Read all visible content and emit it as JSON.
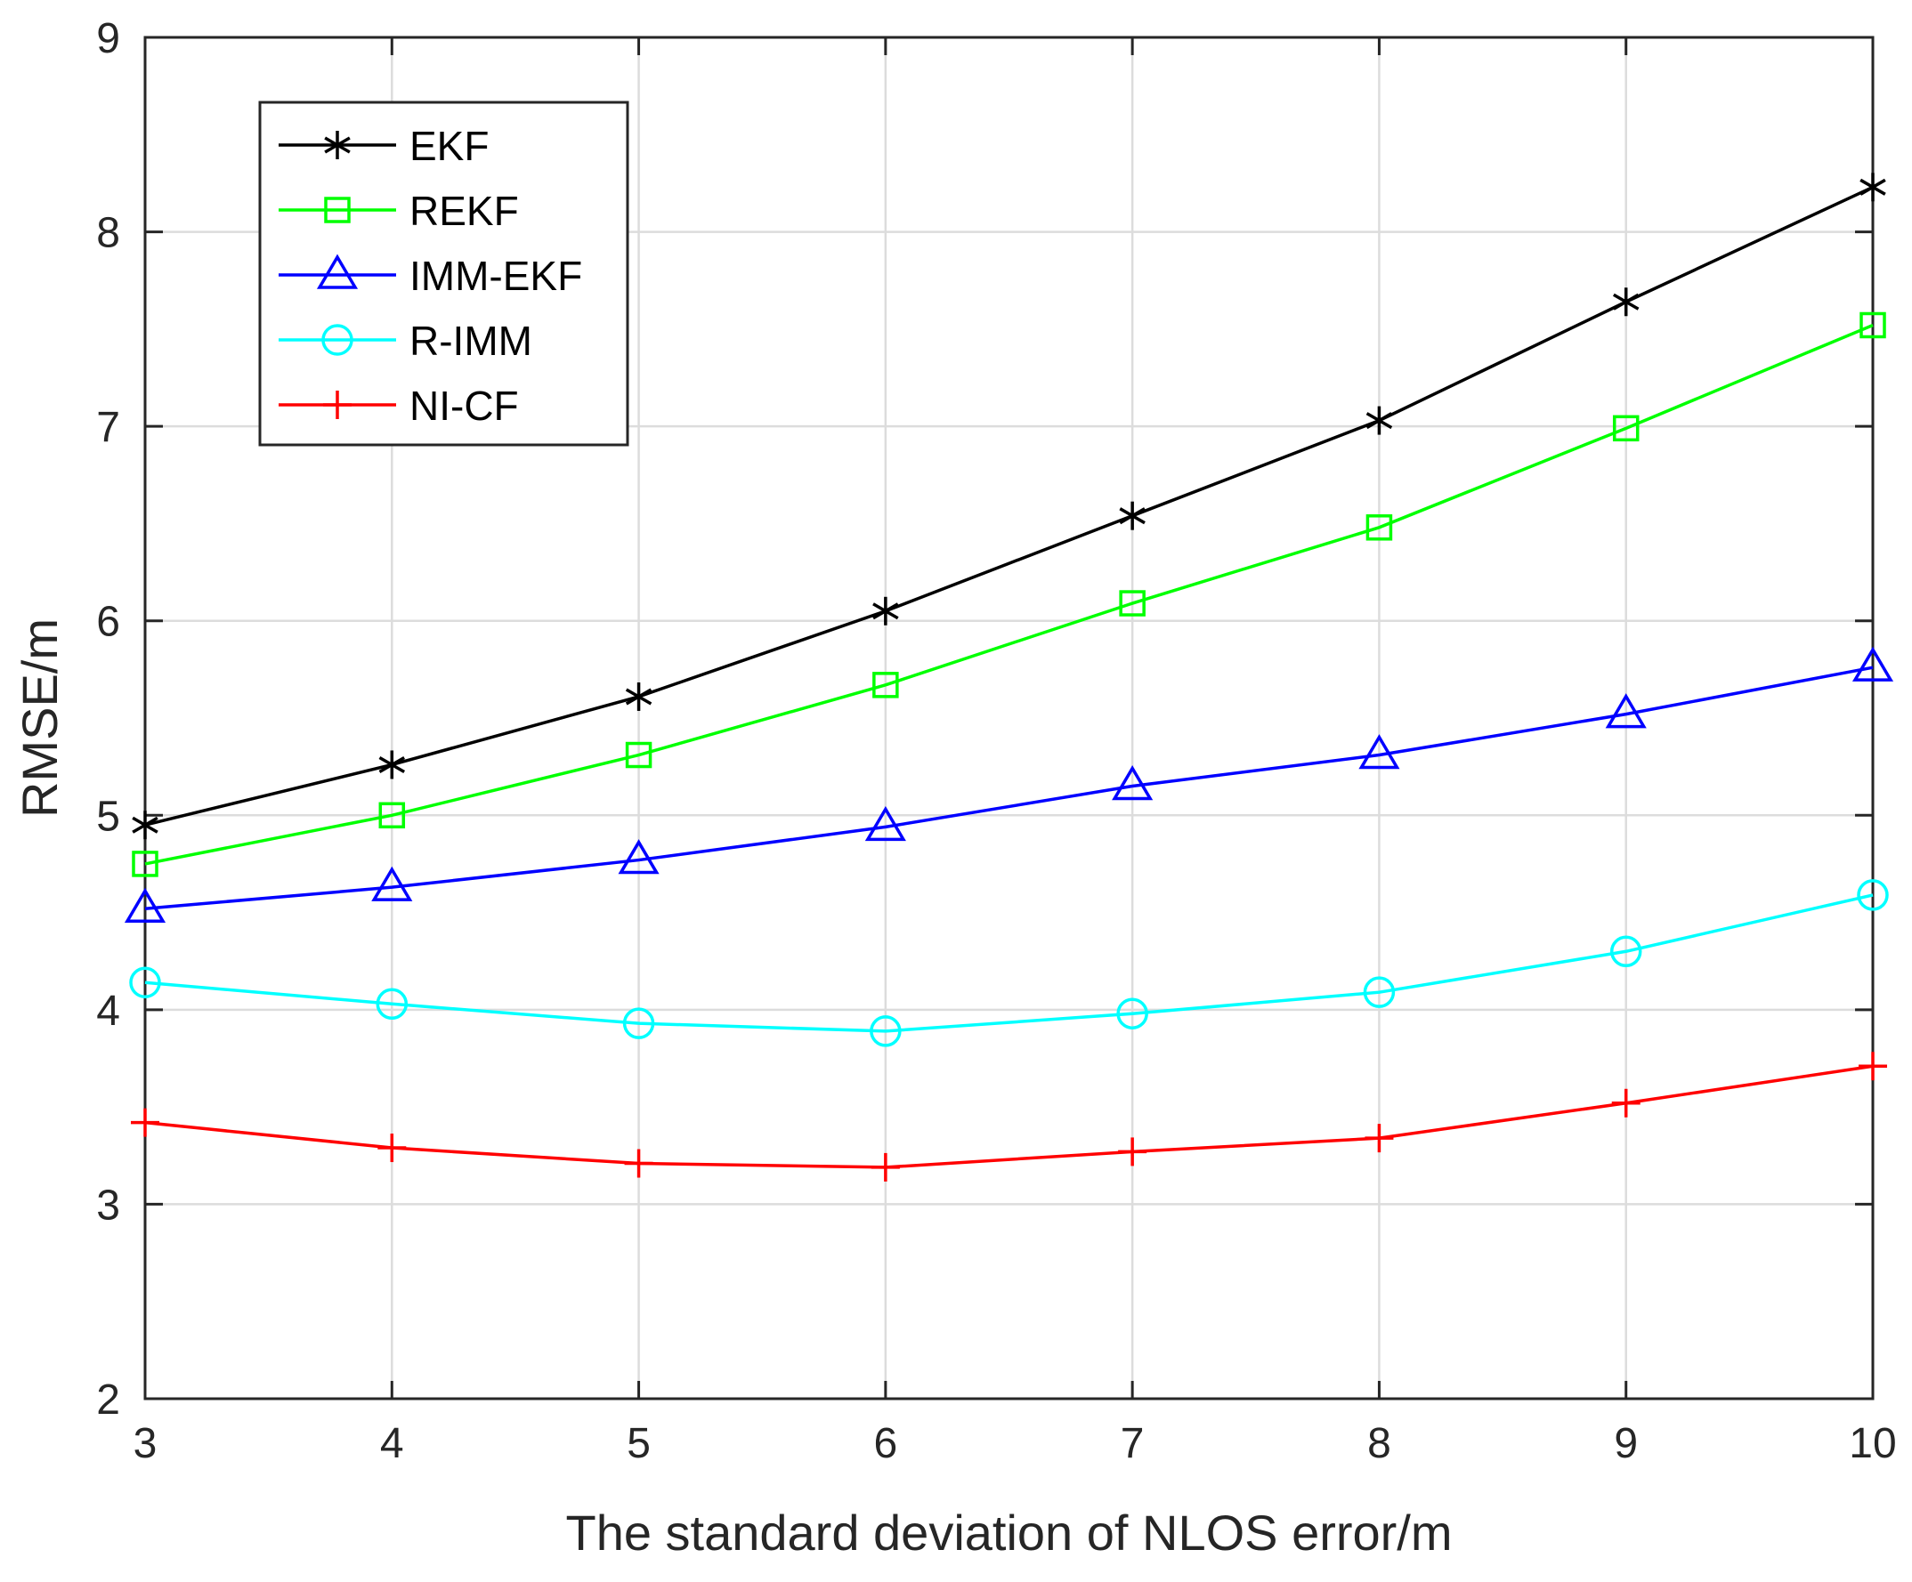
{
  "chart_data": {
    "type": "line",
    "title": "",
    "xlabel": "The standard deviation of NLOS error/m",
    "ylabel": "RMSE/m",
    "xlim": [
      3,
      10
    ],
    "ylim": [
      2,
      9
    ],
    "xticks": [
      3,
      4,
      5,
      6,
      7,
      8,
      9,
      10
    ],
    "yticks": [
      2,
      3,
      4,
      5,
      6,
      7,
      8,
      9
    ],
    "grid": true,
    "legend_position": "top-left",
    "x": [
      3,
      4,
      5,
      6,
      7,
      8,
      9,
      10
    ],
    "series": [
      {
        "name": "EKF",
        "color": "#000000",
        "marker": "asterisk",
        "values": [
          4.95,
          5.26,
          5.61,
          6.05,
          6.54,
          7.03,
          7.64,
          8.23
        ]
      },
      {
        "name": "REKF",
        "color": "#00ff00",
        "marker": "square",
        "values": [
          4.75,
          5.0,
          5.31,
          5.67,
          6.09,
          6.48,
          6.99,
          7.52
        ]
      },
      {
        "name": "IMM-EKF",
        "color": "#0000ff",
        "marker": "triangle",
        "values": [
          4.52,
          4.63,
          4.77,
          4.94,
          5.15,
          5.31,
          5.52,
          5.76
        ]
      },
      {
        "name": "R-IMM",
        "color": "#00ffff",
        "marker": "circle",
        "values": [
          4.14,
          4.03,
          3.93,
          3.89,
          3.98,
          4.09,
          4.3,
          4.59
        ]
      },
      {
        "name": "NI-CF",
        "color": "#ff0000",
        "marker": "plus",
        "values": [
          3.42,
          3.29,
          3.21,
          3.19,
          3.27,
          3.34,
          3.52,
          3.71
        ]
      }
    ]
  }
}
